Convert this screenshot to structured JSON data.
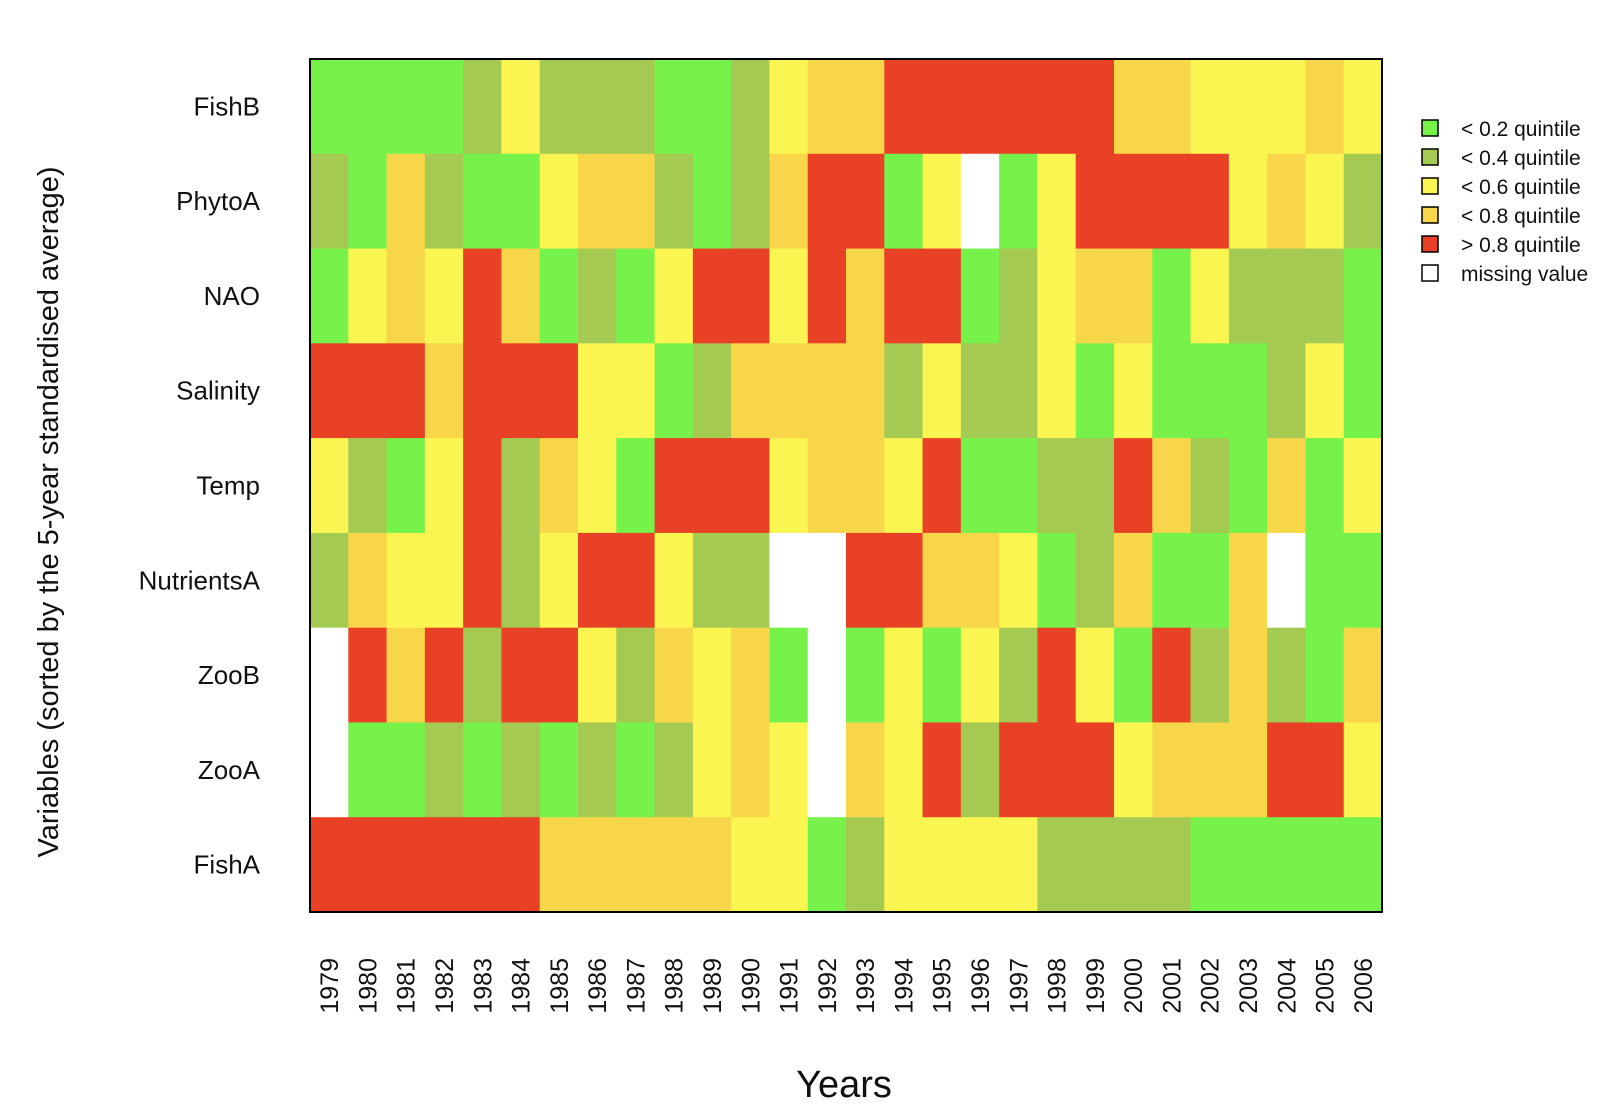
{
  "chart_data": {
    "type": "heatmap",
    "title": "",
    "xlabel": "Years",
    "ylabel": "Variables (sorted by the 5-year standardised average)",
    "years": [
      "1979",
      "1980",
      "1981",
      "1982",
      "1983",
      "1984",
      "1985",
      "1986",
      "1987",
      "1988",
      "1989",
      "1990",
      "1991",
      "1992",
      "1993",
      "1994",
      "1995",
      "1996",
      "1997",
      "1998",
      "1999",
      "2000",
      "2001",
      "2002",
      "2003",
      "2004",
      "2005",
      "2006"
    ],
    "variables": [
      "FishB",
      "PhytoA",
      "NAO",
      "Salinity",
      "Temp",
      "NutrientsA",
      "ZooB",
      "ZooA",
      "FishA"
    ],
    "legend_position": "right",
    "legend": [
      {
        "code": 1,
        "label": "< 0.2 quintile",
        "color": "#76F24A"
      },
      {
        "code": 2,
        "label": "< 0.4 quintile",
        "color": "#A5CA52"
      },
      {
        "code": 3,
        "label": "< 0.6 quintile",
        "color": "#FBF551"
      },
      {
        "code": 4,
        "label": "< 0.8 quintile",
        "color": "#F7D64A"
      },
      {
        "code": 5,
        "label": "> 0.8 quintile",
        "color": "#E84126"
      },
      {
        "code": 0,
        "label": "missing value",
        "color": "#FFFFFF"
      }
    ],
    "values": [
      [
        1,
        1,
        1,
        1,
        2,
        3,
        2,
        2,
        2,
        1,
        1,
        2,
        3,
        4,
        4,
        5,
        5,
        5,
        5,
        5,
        5,
        4,
        4,
        3,
        3,
        3,
        4,
        3
      ],
      [
        2,
        1,
        4,
        2,
        1,
        1,
        3,
        4,
        4,
        2,
        1,
        2,
        4,
        5,
        5,
        1,
        3,
        0,
        1,
        3,
        5,
        5,
        5,
        5,
        3,
        4,
        3,
        2
      ],
      [
        1,
        3,
        4,
        3,
        5,
        4,
        1,
        2,
        1,
        3,
        5,
        5,
        3,
        5,
        4,
        5,
        5,
        1,
        2,
        3,
        4,
        4,
        1,
        3,
        2,
        2,
        2,
        1
      ],
      [
        5,
        5,
        5,
        4,
        5,
        5,
        5,
        3,
        3,
        1,
        2,
        4,
        4,
        4,
        4,
        2,
        3,
        2,
        2,
        3,
        1,
        3,
        1,
        1,
        1,
        2,
        3,
        1
      ],
      [
        3,
        2,
        1,
        3,
        5,
        2,
        4,
        3,
        1,
        5,
        5,
        5,
        3,
        4,
        4,
        3,
        5,
        1,
        1,
        2,
        2,
        5,
        4,
        2,
        1,
        4,
        1,
        3
      ],
      [
        2,
        4,
        3,
        3,
        5,
        2,
        3,
        5,
        5,
        3,
        2,
        2,
        0,
        0,
        5,
        5,
        4,
        4,
        3,
        1,
        2,
        4,
        1,
        1,
        4,
        0,
        1,
        1
      ],
      [
        0,
        5,
        4,
        5,
        2,
        5,
        5,
        3,
        2,
        4,
        3,
        4,
        1,
        0,
        1,
        3,
        1,
        3,
        2,
        5,
        3,
        1,
        5,
        2,
        4,
        2,
        1,
        4
      ],
      [
        0,
        1,
        1,
        2,
        1,
        2,
        1,
        2,
        1,
        2,
        3,
        4,
        3,
        0,
        4,
        3,
        5,
        2,
        5,
        5,
        5,
        3,
        4,
        4,
        4,
        5,
        5,
        3
      ],
      [
        5,
        5,
        5,
        5,
        5,
        5,
        4,
        4,
        4,
        4,
        4,
        3,
        3,
        1,
        2,
        3,
        3,
        3,
        3,
        2,
        2,
        2,
        2,
        1,
        1,
        1,
        1,
        1
      ]
    ]
  }
}
